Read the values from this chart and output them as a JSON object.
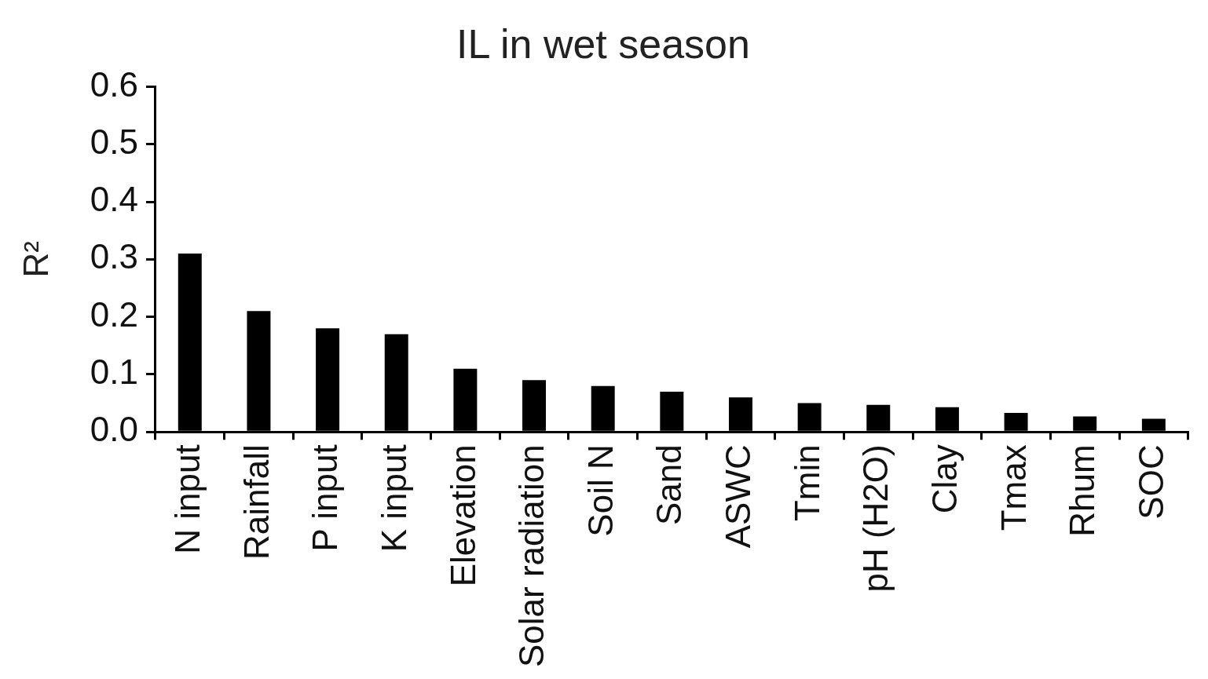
{
  "chart_data": {
    "type": "bar",
    "title": "IL in wet season",
    "ylabel": "R²",
    "categories": [
      "N input",
      "Rainfall",
      "P input",
      "K input",
      "Elevation",
      "Solar radiation",
      "Soil N",
      "Sand",
      "ASWC",
      "Tmin",
      "pH (H2O)",
      "Clay",
      "Tmax",
      "Rhum",
      "SOC"
    ],
    "values": [
      0.31,
      0.21,
      0.18,
      0.17,
      0.11,
      0.09,
      0.08,
      0.07,
      0.06,
      0.05,
      0.047,
      0.043,
      0.033,
      0.027,
      0.023
    ],
    "color": "#000000",
    "ylim": [
      0,
      0.6
    ],
    "yticks": [
      {
        "value": 0,
        "label": "0.0"
      },
      {
        "value": 0.1,
        "label": "0.1"
      },
      {
        "value": 0.2,
        "label": "0.2"
      },
      {
        "value": 0.3,
        "label": "0.3"
      },
      {
        "value": 0.4,
        "label": "0.4"
      },
      {
        "value": 0.5,
        "label": "0.5"
      },
      {
        "value": 0.6,
        "label": "0.6"
      }
    ],
    "grid": false,
    "legend": false
  }
}
